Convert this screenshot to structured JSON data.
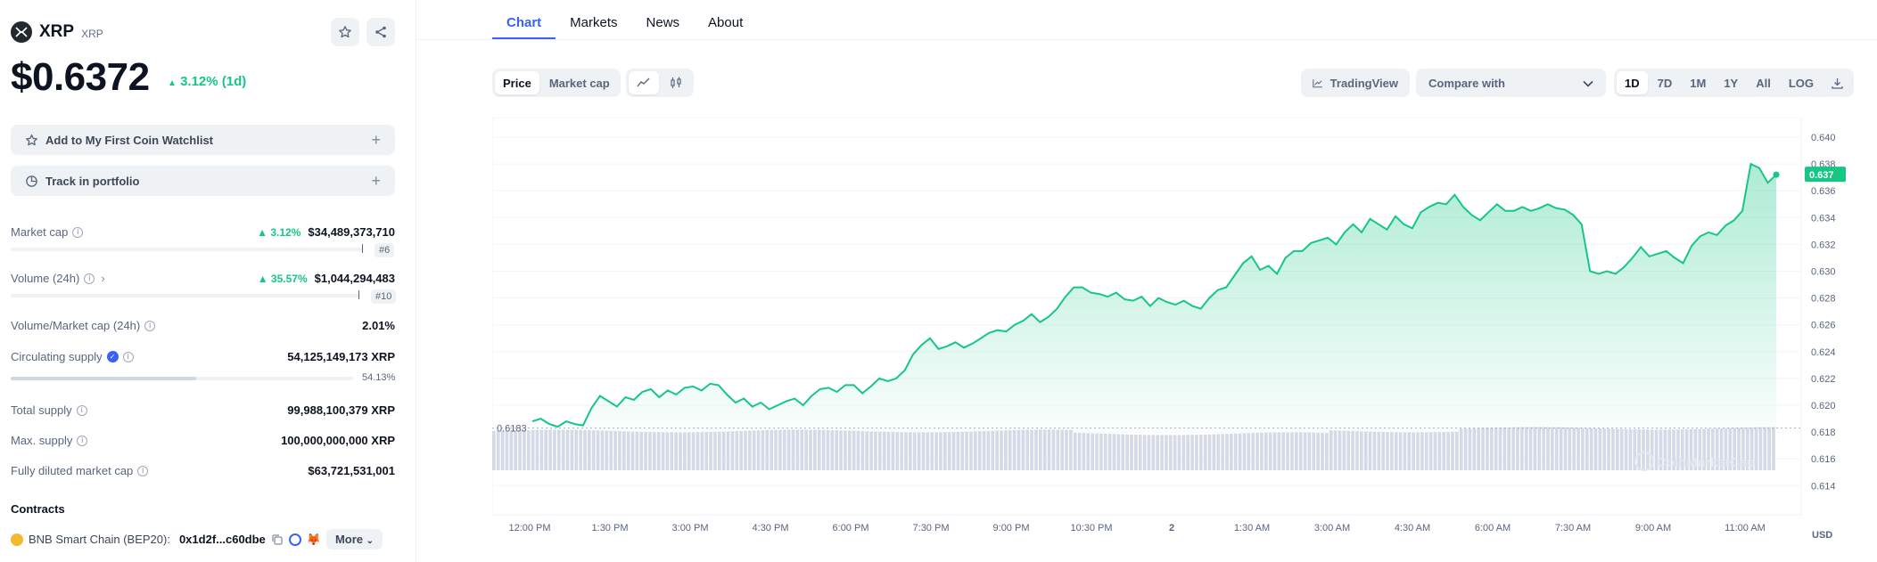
{
  "coin": {
    "name": "XRP",
    "symbol": "XRP",
    "price": "$0.6372",
    "change": "3.12% (1d)"
  },
  "actions": {
    "watchlist": "Add to My First Coin Watchlist",
    "portfolio": "Track in portfolio"
  },
  "stats": {
    "market_cap": {
      "label": "Market cap",
      "change": "3.12%",
      "value": "$34,489,373,710",
      "rank": "#6"
    },
    "volume": {
      "label": "Volume (24h)",
      "change": "35.57%",
      "value": "$1,044,294,483",
      "rank": "#10"
    },
    "vol_mcap": {
      "label": "Volume/Market cap (24h)",
      "value": "2.01%"
    },
    "circulating": {
      "label": "Circulating supply",
      "value": "54,125,149,173 XRP",
      "percent": "54.13%",
      "fill": 0.5413
    },
    "total_supply": {
      "label": "Total supply",
      "value": "99,988,100,379 XRP"
    },
    "max_supply": {
      "label": "Max. supply",
      "value": "100,000,000,000 XRP"
    },
    "fdv": {
      "label": "Fully diluted market cap",
      "value": "$63,721,531,001"
    }
  },
  "contracts": {
    "title": "Contracts",
    "chain": "BNB Smart Chain (BEP20):",
    "address": "0x1d2f...c60dbe",
    "more": "More"
  },
  "tabs": [
    "Chart",
    "Markets",
    "News",
    "About"
  ],
  "controls": {
    "price": "Price",
    "market_cap": "Market cap",
    "tradingview": "TradingView",
    "compare": "Compare with",
    "ranges": [
      "1D",
      "7D",
      "1M",
      "1Y",
      "All",
      "LOG"
    ]
  },
  "colors": {
    "up": "#16c784",
    "accent": "#3861fb",
    "volume": "#cfd6e4"
  },
  "chart_data": {
    "type": "area",
    "ylim": [
      0.613,
      0.641
    ],
    "y_ticks": [
      "0.640",
      "0.638",
      "0.636",
      "0.634",
      "0.632",
      "0.630",
      "0.628",
      "0.626",
      "0.624",
      "0.622",
      "0.620",
      "0.618",
      "0.616",
      "0.614"
    ],
    "x_ticks": [
      "12:00 PM",
      "1:30 PM",
      "3:00 PM",
      "4:30 PM",
      "6:00 PM",
      "7:30 PM",
      "9:00 PM",
      "10:30 PM",
      "2",
      "1:30 AM",
      "3:00 AM",
      "4:30 AM",
      "6:00 AM",
      "7:30 AM",
      "9:00 AM",
      "11:00 AM"
    ],
    "reference_label": "0.6183",
    "current_label": "0.637",
    "currency": "USD",
    "watermark": "CoinMarketCap",
    "prices": [
      0.6188,
      0.619,
      0.6186,
      0.6184,
      0.6188,
      0.6186,
      0.6185,
      0.6198,
      0.6207,
      0.6203,
      0.6199,
      0.6206,
      0.6204,
      0.621,
      0.6212,
      0.6206,
      0.6211,
      0.6208,
      0.6213,
      0.6214,
      0.6211,
      0.6216,
      0.6215,
      0.6208,
      0.6202,
      0.6205,
      0.6199,
      0.6202,
      0.6197,
      0.62,
      0.6203,
      0.6205,
      0.62,
      0.6207,
      0.6212,
      0.6213,
      0.621,
      0.6215,
      0.6215,
      0.6209,
      0.6214,
      0.622,
      0.6218,
      0.622,
      0.6226,
      0.6238,
      0.6245,
      0.625,
      0.6242,
      0.6244,
      0.6247,
      0.6243,
      0.6246,
      0.625,
      0.6254,
      0.6256,
      0.6255,
      0.626,
      0.6263,
      0.6268,
      0.6262,
      0.6266,
      0.6272,
      0.6281,
      0.6288,
      0.6288,
      0.6284,
      0.6283,
      0.6281,
      0.6284,
      0.6279,
      0.6278,
      0.6281,
      0.6274,
      0.628,
      0.6277,
      0.6275,
      0.6278,
      0.6274,
      0.6272,
      0.628,
      0.6286,
      0.6288,
      0.6297,
      0.6306,
      0.6311,
      0.6301,
      0.6304,
      0.6298,
      0.631,
      0.6315,
      0.6315,
      0.6321,
      0.6323,
      0.6325,
      0.632,
      0.6329,
      0.6335,
      0.6329,
      0.6339,
      0.6335,
      0.6331,
      0.6341,
      0.6335,
      0.6332,
      0.6344,
      0.6348,
      0.6351,
      0.635,
      0.6357,
      0.6348,
      0.6342,
      0.6338,
      0.6344,
      0.635,
      0.6345,
      0.6345,
      0.6348,
      0.6345,
      0.6347,
      0.635,
      0.6347,
      0.6346,
      0.6342,
      0.6335,
      0.63,
      0.6298,
      0.63,
      0.6298,
      0.6303,
      0.631,
      0.6318,
      0.6311,
      0.6313,
      0.6315,
      0.631,
      0.6306,
      0.6319,
      0.6326,
      0.6329,
      0.6327,
      0.6334,
      0.6338,
      0.6345,
      0.638,
      0.6377,
      0.6366,
      0.6372
    ]
  }
}
